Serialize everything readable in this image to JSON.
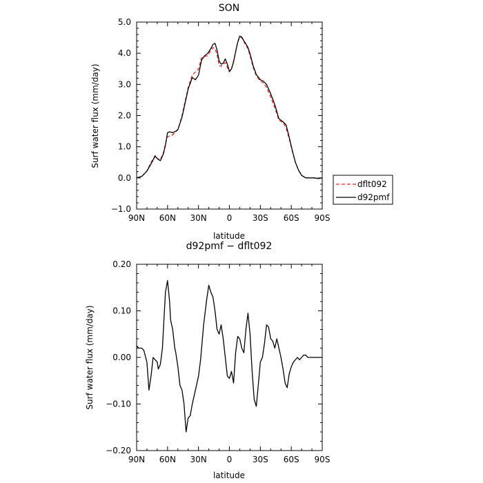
{
  "chart_data": [
    {
      "type": "line",
      "title": "SON",
      "xlabel": "latitude",
      "ylabel": "Surf water flux (mm/day)",
      "xlim": [
        90,
        -90
      ],
      "ylim": [
        -1.0,
        5.0
      ],
      "xticks": [
        {
          "value": 90,
          "label": "90N"
        },
        {
          "value": 60,
          "label": "60N"
        },
        {
          "value": 30,
          "label": "30N"
        },
        {
          "value": 0,
          "label": "0"
        },
        {
          "value": -30,
          "label": "30S"
        },
        {
          "value": -60,
          "label": "60S"
        },
        {
          "value": -90,
          "label": "90S"
        }
      ],
      "yticks": [
        {
          "value": -1.0,
          "label": "−1.0"
        },
        {
          "value": 0.0,
          "label": "0.0"
        },
        {
          "value": 1.0,
          "label": "1.0"
        },
        {
          "value": 2.0,
          "label": "2.0"
        },
        {
          "value": 3.0,
          "label": "3.0"
        },
        {
          "value": 4.0,
          "label": "4.0"
        },
        {
          "value": 5.0,
          "label": "5.0"
        }
      ],
      "legend": "right",
      "series": [
        {
          "name": "dflt092",
          "color": "#e8241f",
          "dash": "dashed",
          "x": [
            90,
            85,
            80,
            76,
            72,
            70,
            67,
            64,
            62,
            60,
            55,
            50,
            46,
            40,
            36,
            33,
            30,
            27,
            24,
            21,
            18,
            16,
            14,
            12,
            10,
            8,
            6,
            4,
            2,
            0,
            -2,
            -4,
            -6,
            -8,
            -10,
            -12,
            -14,
            -16,
            -18,
            -20,
            -23,
            -26,
            -30,
            -33,
            -36,
            -40,
            -44,
            -48,
            -52,
            -55,
            -58,
            -61,
            -64,
            -67,
            -70,
            -74,
            -78,
            -82,
            -86,
            -90
          ],
          "y": [
            0.0,
            0.04,
            0.22,
            0.5,
            0.72,
            0.62,
            0.58,
            0.82,
            1.1,
            1.32,
            1.38,
            1.55,
            2.0,
            2.9,
            3.3,
            3.4,
            3.5,
            3.85,
            3.9,
            3.92,
            4.1,
            4.18,
            4.15,
            3.95,
            3.6,
            3.58,
            3.65,
            3.7,
            3.55,
            3.4,
            3.5,
            3.75,
            4.05,
            4.35,
            4.52,
            4.5,
            4.38,
            4.25,
            4.15,
            3.92,
            3.55,
            3.28,
            3.1,
            3.05,
            2.9,
            2.6,
            2.25,
            1.85,
            1.78,
            1.6,
            1.25,
            0.85,
            0.5,
            0.25,
            0.08,
            0.0,
            0.0,
            0.0,
            -0.02,
            0.0
          ]
        },
        {
          "name": "d92pmf",
          "color": "#000000",
          "dash": "solid",
          "x": [
            90,
            85,
            80,
            76,
            72,
            70,
            67,
            64,
            62,
            60,
            58,
            55,
            52,
            50,
            46,
            40,
            36,
            33,
            30,
            27,
            24,
            21,
            18,
            16,
            14,
            12,
            10,
            8,
            6,
            4,
            2,
            0,
            -2,
            -4,
            -6,
            -8,
            -10,
            -12,
            -14,
            -16,
            -18,
            -20,
            -23,
            -26,
            -30,
            -33,
            -36,
            -40,
            -44,
            -48,
            -52,
            -55,
            -58,
            -61,
            -64,
            -67,
            -70,
            -74,
            -78,
            -82,
            -86,
            -90
          ],
          "y": [
            0.0,
            0.05,
            0.22,
            0.45,
            0.7,
            0.62,
            0.55,
            0.78,
            1.05,
            1.45,
            1.48,
            1.45,
            1.5,
            1.55,
            1.95,
            2.85,
            3.22,
            3.15,
            3.3,
            3.78,
            3.92,
            4.0,
            4.15,
            4.28,
            4.32,
            4.1,
            3.75,
            3.65,
            3.68,
            3.82,
            3.65,
            3.42,
            3.5,
            3.72,
            4.05,
            4.35,
            4.55,
            4.52,
            4.4,
            4.3,
            4.18,
            3.98,
            3.6,
            3.32,
            3.15,
            3.1,
            3.0,
            2.7,
            2.35,
            1.9,
            1.8,
            1.7,
            1.3,
            0.88,
            0.5,
            0.25,
            0.08,
            0.0,
            0.0,
            0.0,
            -0.02,
            0.0
          ]
        }
      ]
    },
    {
      "type": "line",
      "title": "d92pmf − dflt092",
      "xlabel": "latitude",
      "ylabel": "Surf water flux (mm/day)",
      "xlim": [
        90,
        -90
      ],
      "ylim": [
        -0.2,
        0.2
      ],
      "xticks": [
        {
          "value": 90,
          "label": "90N"
        },
        {
          "value": 60,
          "label": "60N"
        },
        {
          "value": 30,
          "label": "30N"
        },
        {
          "value": 0,
          "label": "0"
        },
        {
          "value": -30,
          "label": "30S"
        },
        {
          "value": -60,
          "label": "60S"
        },
        {
          "value": -90,
          "label": "90S"
        }
      ],
      "yticks": [
        {
          "value": -0.2,
          "label": "−0.20"
        },
        {
          "value": -0.1,
          "label": "−0.10"
        },
        {
          "value": 0.0,
          "label": "0.00"
        },
        {
          "value": 0.1,
          "label": "0.10"
        },
        {
          "value": 0.2,
          "label": "0.20"
        }
      ],
      "series": [
        {
          "name": "d92pmf − dflt092",
          "color": "#000000",
          "dash": "solid",
          "x": [
            90,
            88,
            85,
            83,
            80,
            78,
            76,
            74,
            72,
            70,
            69,
            67,
            65,
            63,
            62,
            60,
            58,
            57,
            56,
            55,
            53,
            52,
            50,
            48,
            46,
            44,
            42,
            40,
            38,
            36,
            35,
            33,
            31,
            30,
            28,
            25,
            22,
            20,
            18,
            16,
            14,
            12,
            10,
            8,
            6,
            4,
            2,
            0,
            -2,
            -4,
            -6,
            -8,
            -10,
            -12,
            -14,
            -16,
            -18,
            -20,
            -22,
            -24,
            -26,
            -28,
            -30,
            -32,
            -34,
            -36,
            -38,
            -40,
            -42,
            -44,
            -46,
            -48,
            -50,
            -52,
            -54,
            -56,
            -58,
            -60,
            -62,
            -64,
            -66,
            -68,
            -70,
            -72,
            -74,
            -76,
            -78,
            -80,
            -82,
            -84,
            -86,
            -88,
            -90
          ],
          "y": [
            0.025,
            0.02,
            0.02,
            0.015,
            -0.01,
            -0.07,
            -0.04,
            0.0,
            -0.005,
            -0.01,
            -0.025,
            -0.015,
            0.02,
            0.1,
            0.14,
            0.165,
            0.12,
            0.08,
            0.07,
            0.06,
            0.02,
            0.01,
            -0.02,
            -0.06,
            -0.07,
            -0.1,
            -0.16,
            -0.13,
            -0.125,
            -0.1,
            -0.09,
            -0.07,
            -0.05,
            -0.04,
            -0.005,
            0.07,
            0.125,
            0.155,
            0.14,
            0.13,
            0.1,
            0.06,
            0.05,
            0.07,
            0.04,
            0.0,
            -0.04,
            -0.045,
            -0.03,
            -0.055,
            0.01,
            0.045,
            0.04,
            0.02,
            0.01,
            0.06,
            0.095,
            0.05,
            -0.03,
            -0.09,
            -0.105,
            -0.06,
            -0.01,
            0.0,
            0.03,
            0.07,
            0.065,
            0.04,
            0.035,
            0.02,
            0.04,
            0.02,
            0.0,
            -0.025,
            -0.055,
            -0.065,
            -0.035,
            -0.02,
            -0.01,
            -0.005,
            0.0,
            -0.005,
            0.0,
            0.005,
            0.005,
            0.0,
            0.0,
            0.0,
            0.0,
            0.0,
            0.0,
            0.0,
            0.0
          ]
        }
      ]
    }
  ]
}
